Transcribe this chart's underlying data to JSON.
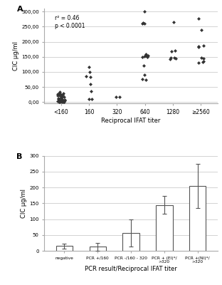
{
  "panel_A": {
    "title_label": "A",
    "xlabel": "Reciprocal IFAT titer",
    "ylabel": "CIC μg/ml",
    "annotation": "r² = 0.46\np < 0.0001",
    "ylim": [
      -5,
      310
    ],
    "yticks": [
      0,
      50,
      100,
      150,
      200,
      250,
      300
    ],
    "ytick_labels": [
      "0,00",
      "50,00",
      "100,00",
      "150,00",
      "200,00",
      "250,00",
      "300,00"
    ],
    "categories": [
      "<160",
      "160",
      "320",
      "640",
      "1280",
      "≥2560"
    ],
    "scatter_data": {
      "<160": [
        0,
        0,
        0,
        1,
        1,
        2,
        2,
        2,
        3,
        3,
        3,
        3,
        4,
        4,
        5,
        5,
        5,
        6,
        6,
        7,
        8,
        10,
        10,
        11,
        12,
        14,
        15,
        17,
        19,
        20,
        20,
        21,
        22,
        23,
        24,
        25,
        26,
        27,
        28,
        30,
        33
      ],
      "160": [
        10,
        11,
        36,
        60,
        84,
        86,
        100,
        117
      ],
      "320": [
        17,
        18
      ],
      "640": [
        73,
        75,
        90,
        120,
        150,
        150,
        152,
        153,
        154,
        155,
        157,
        158,
        260,
        260,
        263,
        300
      ],
      "1280": [
        143,
        145,
        147,
        148,
        168,
        170,
        265
      ],
      "≥2560": [
        130,
        133,
        135,
        145,
        147,
        183,
        185,
        186,
        240,
        278
      ]
    }
  },
  "panel_B": {
    "title_label": "B",
    "xlabel": "PCR result/Reciprocal IFAT titer",
    "ylabel": "CIC μg/ml",
    "ylim": [
      0,
      300
    ],
    "yticks": [
      0,
      50,
      100,
      150,
      200,
      250,
      300
    ],
    "categories": [
      "negative",
      "PCR +/160",
      "PCR -/160 - 320",
      "PCR + (El)*/\n>320",
      "PCR +(NI)*/\n>320"
    ],
    "bar_heights": [
      15,
      13,
      57,
      145,
      205
    ],
    "error_bars": [
      8,
      12,
      43,
      28,
      70
    ],
    "bar_edge_color": "#555555"
  },
  "figure_bg": "#ffffff",
  "panel_bg": "#ffffff",
  "marker": "D",
  "marker_color": "#333333",
  "marker_size": 2.5,
  "grid_color": "#cccccc",
  "grid_linewidth": 0.6,
  "spine_color": "#aaaaaa"
}
